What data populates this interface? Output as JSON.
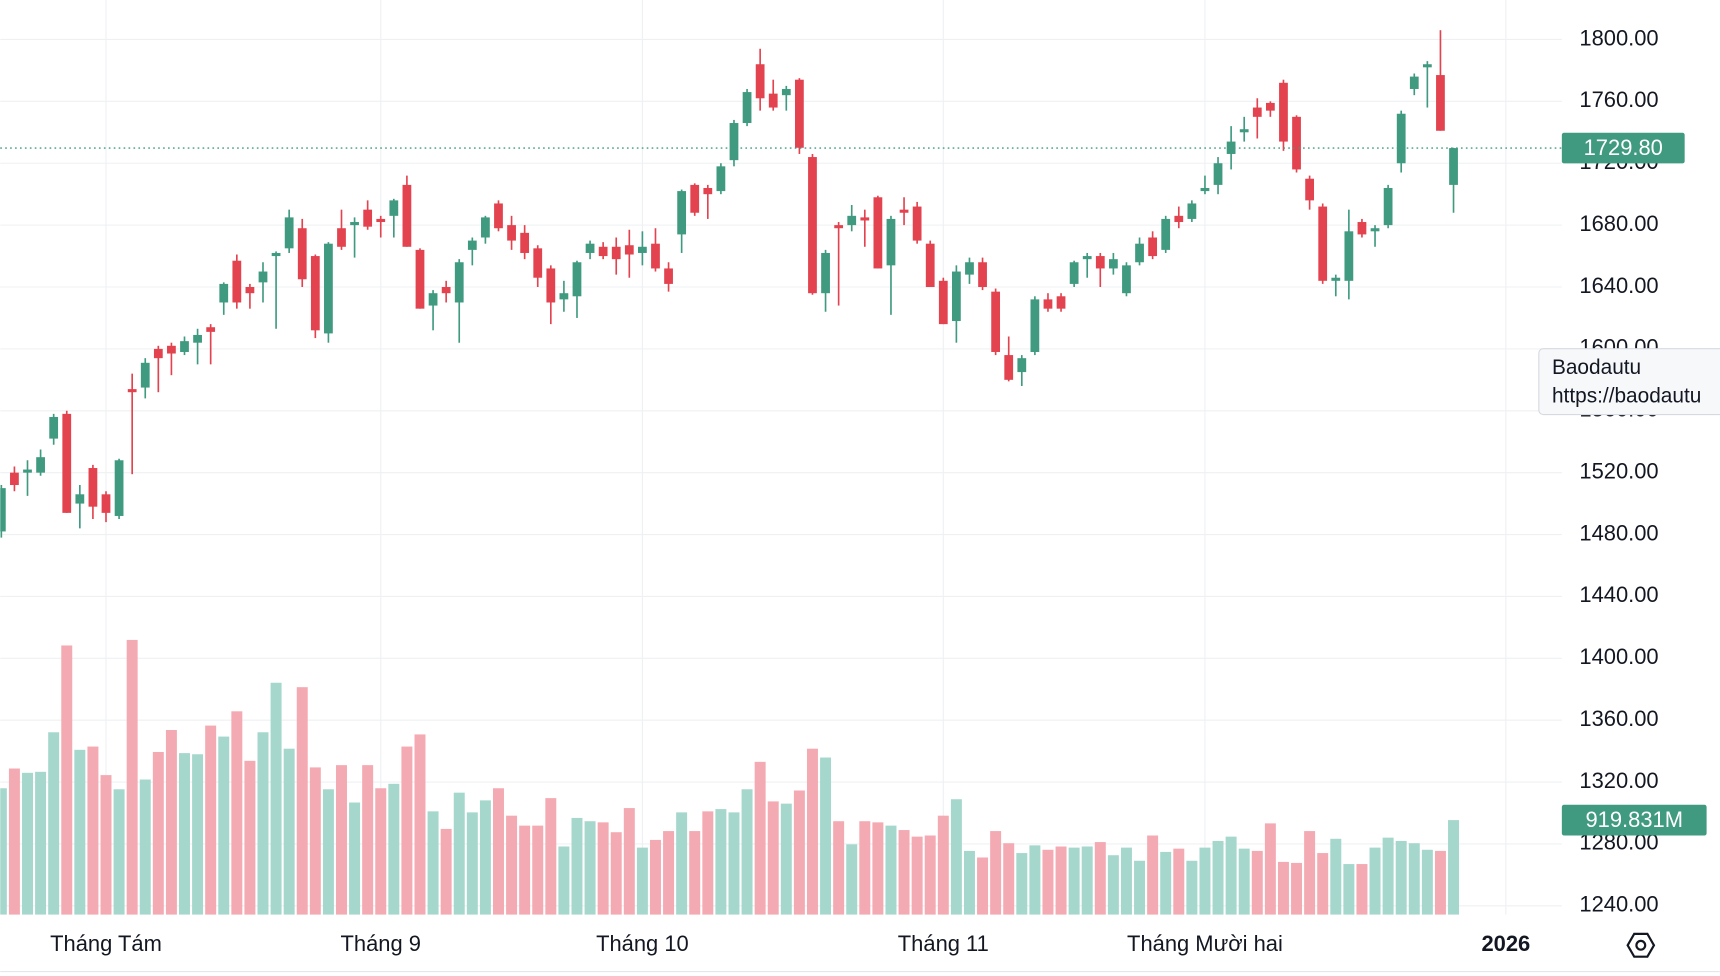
{
  "chart_data": {
    "type": "candlestick",
    "annotation": {
      "title": "Baodautu",
      "url": "https://baodautu"
    },
    "up_color": "#3f9a80",
    "down_color": "#e2434f",
    "volume_up_color": "#a5d7cc",
    "volume_down_color": "#f4aab2",
    "ylim": [
      1240,
      1800
    ],
    "yticks": [
      {
        "value": 1240,
        "label": "1240.00"
      },
      {
        "value": 1280,
        "label": "1280.00"
      },
      {
        "value": 1320,
        "label": "1320.00"
      },
      {
        "value": 1360,
        "label": "1360.00"
      },
      {
        "value": 1400,
        "label": "1400.00"
      },
      {
        "value": 1440,
        "label": "1440.00"
      },
      {
        "value": 1480,
        "label": "1480.00"
      },
      {
        "value": 1520,
        "label": "1520.00"
      },
      {
        "value": 1560,
        "label": "1560.00"
      },
      {
        "value": 1600,
        "label": "1600.00"
      },
      {
        "value": 1640,
        "label": "1640.00"
      },
      {
        "value": 1680,
        "label": "1680.00"
      },
      {
        "value": 1720,
        "label": "1720.00"
      },
      {
        "value": 1760,
        "label": "1760.00"
      },
      {
        "value": 1800,
        "label": "1800.00"
      }
    ],
    "xticks": [
      {
        "value": 8,
        "label": "Tháng Tám"
      },
      {
        "value": 29,
        "label": "Tháng 9"
      },
      {
        "value": 49,
        "label": "Tháng 10"
      },
      {
        "value": 72,
        "label": "Tháng 11"
      },
      {
        "value": 92,
        "label": "Tháng Mười hai"
      },
      {
        "value": 115,
        "label": "2026"
      }
    ],
    "grid": true,
    "last_price": {
      "value": 1729.8,
      "label": "1729.80"
    },
    "last_volume": {
      "value": 919.831,
      "label": "919.831M"
    },
    "volume_lim": [
      0,
      3000
    ],
    "open": [
      1482,
      1520,
      1520,
      1520,
      1542,
      1558,
      1500,
      1523,
      1506,
      1492,
      1574,
      1575,
      1600,
      1602,
      1598,
      1604,
      1614,
      1630,
      1657,
      1640,
      1643,
      1660,
      1665,
      1678,
      1660,
      1610,
      1678,
      1680,
      1690,
      1684,
      1686,
      1706,
      1664,
      1628,
      1640,
      1630,
      1664,
      1672,
      1694,
      1680,
      1675,
      1665,
      1652,
      1632,
      1634,
      1662,
      1666,
      1666,
      1667,
      1662,
      1668,
      1652,
      1674,
      1706,
      1704,
      1702,
      1722,
      1746,
      1784,
      1765,
      1764,
      1774,
      1724,
      1636,
      1680,
      1680,
      1685,
      1698,
      1654,
      1690,
      1692,
      1668,
      1644,
      1618,
      1648,
      1656,
      1637,
      1596,
      1585,
      1598,
      1632,
      1634,
      1642,
      1658,
      1660,
      1652,
      1636,
      1656,
      1672,
      1664,
      1686,
      1684,
      1702,
      1706,
      1726,
      1740,
      1756,
      1759,
      1772,
      1750,
      1710,
      1692,
      1644,
      1644,
      1682,
      1676,
      1680,
      1720,
      1768,
      1782,
      1777,
      1706
    ],
    "high": [
      1512,
      1524,
      1528,
      1535,
      1558,
      1560,
      1512,
      1525,
      1508,
      1529,
      1584,
      1594,
      1602,
      1604,
      1608,
      1613,
      1616,
      1643,
      1661,
      1642,
      1656,
      1663,
      1690,
      1684,
      1661,
      1669,
      1690,
      1685,
      1696,
      1686,
      1697,
      1712,
      1665,
      1638,
      1644,
      1658,
      1672,
      1686,
      1696,
      1686,
      1680,
      1667,
      1654,
      1644,
      1657,
      1670,
      1669,
      1672,
      1677,
      1676,
      1678,
      1656,
      1703,
      1707,
      1706,
      1720,
      1748,
      1768,
      1794,
      1774,
      1770,
      1775,
      1726,
      1664,
      1682,
      1693,
      1690,
      1699,
      1686,
      1698,
      1695,
      1670,
      1646,
      1654,
      1659,
      1659,
      1639,
      1608,
      1596,
      1634,
      1636,
      1636,
      1657,
      1662,
      1662,
      1662,
      1656,
      1672,
      1676,
      1686,
      1692,
      1696,
      1712,
      1724,
      1744,
      1750,
      1762,
      1760,
      1774,
      1751,
      1712,
      1694,
      1648,
      1690,
      1684,
      1680,
      1706,
      1754,
      1778,
      1786,
      1806,
      1730
    ],
    "low": [
      1478,
      1508,
      1505,
      1518,
      1538,
      1494,
      1484,
      1490,
      1488,
      1490,
      1519,
      1568,
      1572,
      1583,
      1596,
      1590,
      1590,
      1622,
      1626,
      1626,
      1630,
      1613,
      1662,
      1640,
      1607,
      1604,
      1664,
      1659,
      1677,
      1672,
      1672,
      1666,
      1626,
      1612,
      1630,
      1604,
      1654,
      1668,
      1676,
      1664,
      1658,
      1640,
      1616,
      1624,
      1620,
      1658,
      1658,
      1648,
      1646,
      1654,
      1650,
      1637,
      1662,
      1686,
      1684,
      1700,
      1718,
      1744,
      1754,
      1754,
      1754,
      1726,
      1635,
      1624,
      1628,
      1676,
      1666,
      1652,
      1622,
      1680,
      1668,
      1640,
      1616,
      1604,
      1642,
      1638,
      1596,
      1579,
      1576,
      1596,
      1624,
      1624,
      1640,
      1646,
      1640,
      1648,
      1634,
      1654,
      1658,
      1662,
      1678,
      1682,
      1700,
      1700,
      1716,
      1734,
      1736,
      1750,
      1728,
      1714,
      1690,
      1642,
      1634,
      1632,
      1672,
      1666,
      1678,
      1714,
      1764,
      1756,
      1741,
      1688
    ],
    "close": [
      1510,
      1512,
      1522,
      1530,
      1556,
      1494,
      1506,
      1498,
      1494,
      1528,
      1572,
      1591,
      1594,
      1597,
      1605,
      1609,
      1611,
      1642,
      1630,
      1636,
      1650,
      1662,
      1685,
      1645,
      1612,
      1668,
      1666,
      1682,
      1679,
      1682,
      1696,
      1666,
      1626,
      1636,
      1636,
      1656,
      1670,
      1685,
      1678,
      1670,
      1662,
      1646,
      1630,
      1636,
      1656,
      1668,
      1660,
      1658,
      1661,
      1666,
      1652,
      1642,
      1702,
      1688,
      1700,
      1718,
      1746,
      1766,
      1762,
      1756,
      1768,
      1730,
      1636,
      1662,
      1678,
      1686,
      1683,
      1652,
      1684,
      1688,
      1670,
      1640,
      1616,
      1650,
      1656,
      1640,
      1598,
      1580,
      1594,
      1632,
      1626,
      1626,
      1656,
      1660,
      1652,
      1658,
      1654,
      1668,
      1660,
      1684,
      1682,
      1694,
      1704,
      1720,
      1734,
      1742,
      1750,
      1754,
      1734,
      1716,
      1696,
      1644,
      1646,
      1676,
      1674,
      1678,
      1704,
      1752,
      1776,
      1784,
      1741,
      1729.8
    ],
    "volume": [
      1230,
      1422,
      1380,
      1390,
      1775,
      2620,
      1604,
      1636,
      1358,
      1220,
      2674,
      1315,
      1583,
      1797,
      1572,
      1561,
      1840,
      1733,
      1979,
      1497,
      1775,
      2257,
      1615,
      2214,
      1433,
      1220,
      1455,
      1091,
      1455,
      1230,
      1273,
      1636,
      1754,
      1005,
      834,
      1187,
      995,
      1112,
      1230,
      963,
      866,
      866,
      1134,
      663,
      941,
      909,
      898,
      802,
      1037,
      652,
      727,
      813,
      995,
      813,
      1005,
      1027,
      995,
      1220,
      1487,
      1102,
      1080,
      1208,
      1615,
      1529,
      909,
      684,
      909,
      898,
      866,
      823,
      759,
      770,
      963,
      1123,
      620,
      556,
      813,
      695,
      599,
      674,
      631,
      663,
      652,
      663,
      706,
      578,
      652,
      524,
      770,
      610,
      642,
      524,
      652,
      717,
      759,
      642,
      620,
      888,
      513,
      503,
      813,
      599,
      738,
      492,
      492,
      652,
      749,
      717,
      695,
      631,
      620,
      919.831
    ]
  }
}
